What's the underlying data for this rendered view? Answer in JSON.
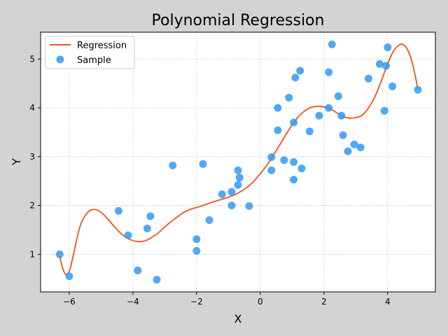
{
  "chart_data": {
    "type": "scatter",
    "title": "Polynomial Regression",
    "xlabel": "X",
    "ylabel": "Y",
    "xlim": [
      -6.9,
      5.5
    ],
    "ylim": [
      0.23,
      5.55
    ],
    "xticks": [
      -6,
      -4,
      -2,
      0,
      2,
      4
    ],
    "yticks": [
      1,
      2,
      3,
      4,
      5
    ],
    "grid": true,
    "legend_position": "top-left",
    "colors": {
      "regression": "#f2501f",
      "sample": "#3399f2",
      "background": "#d3d3d3",
      "plot_bg": "#ffffff",
      "grid": "#b0b0b0"
    },
    "series": [
      {
        "name": "Regression",
        "kind": "line",
        "x": [
          -6.3,
          -6.2,
          -6.1,
          -6.0,
          -5.9,
          -5.8,
          -5.7,
          -5.6,
          -5.4,
          -5.2,
          -5.0,
          -4.8,
          -4.6,
          -4.4,
          -4.2,
          -4.0,
          -3.8,
          -3.6,
          -3.4,
          -3.2,
          -3.0,
          -2.8,
          -2.6,
          -2.4,
          -2.2,
          -2.0,
          -1.8,
          -1.5,
          -1.2,
          -1.0,
          -0.8,
          -0.6,
          -0.4,
          -0.2,
          0.0,
          0.2,
          0.4,
          0.6,
          0.8,
          1.0,
          1.2,
          1.4,
          1.6,
          1.8,
          2.0,
          2.2,
          2.4,
          2.6,
          2.8,
          3.0,
          3.2,
          3.4,
          3.6,
          3.8,
          4.0,
          4.2,
          4.4,
          4.5,
          4.6,
          4.7,
          4.8,
          4.9,
          4.95
        ],
        "y": [
          0.96,
          0.7,
          0.58,
          0.65,
          0.9,
          1.2,
          1.48,
          1.68,
          1.87,
          1.92,
          1.86,
          1.73,
          1.58,
          1.44,
          1.34,
          1.28,
          1.26,
          1.28,
          1.35,
          1.44,
          1.56,
          1.67,
          1.77,
          1.86,
          1.92,
          1.96,
          2.0,
          2.07,
          2.13,
          2.17,
          2.22,
          2.29,
          2.38,
          2.5,
          2.65,
          2.82,
          3.02,
          3.23,
          3.45,
          3.65,
          3.82,
          3.94,
          4.01,
          4.03,
          4.02,
          3.98,
          3.9,
          3.82,
          3.79,
          3.8,
          3.85,
          4.0,
          4.23,
          4.55,
          4.9,
          5.18,
          5.3,
          5.29,
          5.22,
          5.08,
          4.85,
          4.55,
          4.38
        ]
      },
      {
        "name": "Sample",
        "kind": "scatter",
        "x": [
          -6.3,
          -6.0,
          -4.45,
          -4.15,
          -3.85,
          -3.55,
          -3.45,
          -3.25,
          -2.75,
          -2.0,
          -2.0,
          -1.8,
          -1.6,
          -1.2,
          -0.9,
          -0.9,
          -0.7,
          -0.7,
          -0.65,
          -0.35,
          0.35,
          0.35,
          0.55,
          0.55,
          0.75,
          0.9,
          1.05,
          1.05,
          1.05,
          1.1,
          1.25,
          1.3,
          1.55,
          1.85,
          2.15,
          2.15,
          2.25,
          2.45,
          2.55,
          2.6,
          2.75,
          2.95,
          3.15,
          3.4,
          3.75,
          3.9,
          3.95,
          4.0,
          4.15,
          4.95
        ],
        "y": [
          1.0,
          0.55,
          1.89,
          1.39,
          0.67,
          1.53,
          1.78,
          0.48,
          2.82,
          1.31,
          1.07,
          2.85,
          1.7,
          2.23,
          2.28,
          2.0,
          2.72,
          2.42,
          2.57,
          1.99,
          2.99,
          2.72,
          4.0,
          3.54,
          2.93,
          4.21,
          3.7,
          2.89,
          2.53,
          4.62,
          4.76,
          2.76,
          3.52,
          3.84,
          4.73,
          4.0,
          5.3,
          4.24,
          3.84,
          3.44,
          3.11,
          3.25,
          3.19,
          4.6,
          4.9,
          3.94,
          4.86,
          5.24,
          4.44,
          4.37
        ]
      }
    ]
  }
}
